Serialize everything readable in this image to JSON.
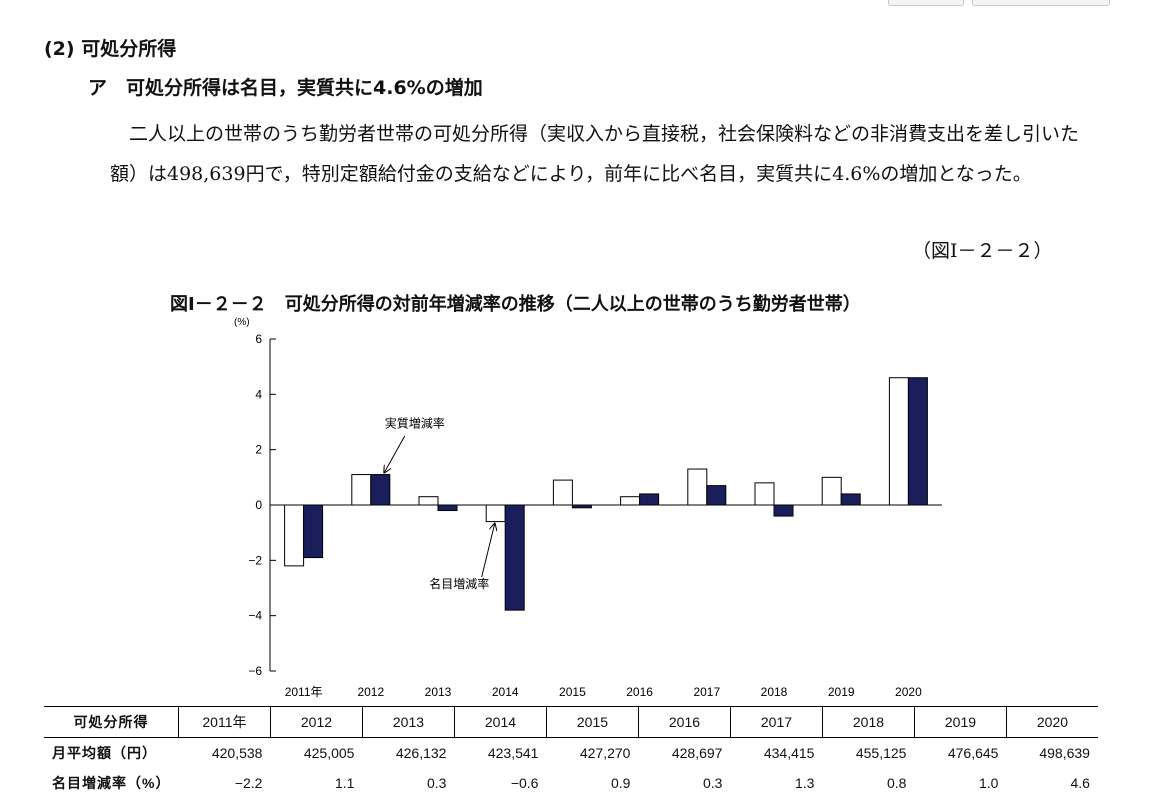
{
  "section_heading": "(2) 可処分所得",
  "subheading": "ア　可処分所得は名目，実質共に4.6%の増加",
  "body_text": "二人以上の世帯のうち勤労者世帯の可処分所得（実収入から直接税，社会保険料などの非消費支出を差し引いた額）は498,639円で，特別定額給付金の支給などにより，前年に比べ名目，実質共に4.6%の増加となった。",
  "figure_reference": "（図Ⅰ－２－２）",
  "figure_title": "図Ⅰ－２－２　可処分所得の対前年増減率の推移（二人以上の世帯のうち勤労者世帯）",
  "chart_data": {
    "type": "bar",
    "title": "図Ⅰ－２－２　可処分所得の対前年増減率の推移（二人以上の世帯のうち勤労者世帯）",
    "ylabel": "(%)",
    "xlabel": "",
    "ylim": [
      -6,
      6
    ],
    "yticks": [
      "−6",
      "−4",
      "−2",
      "0",
      "2",
      "4",
      "6"
    ],
    "ytick_values": [
      -6,
      -4,
      -2,
      0,
      2,
      4,
      6
    ],
    "grid": false,
    "categories": [
      "2011年",
      "2012",
      "2013",
      "2014",
      "2015",
      "2016",
      "2017",
      "2018",
      "2019",
      "2020"
    ],
    "series": [
      {
        "name": "名目増減率",
        "color": "#ffffff",
        "values": [
          -2.2,
          1.1,
          0.3,
          -0.6,
          0.9,
          0.3,
          1.3,
          0.8,
          1.0,
          4.6
        ]
      },
      {
        "name": "実質増減率",
        "color": "#1a1f5c",
        "values": [
          -1.9,
          1.1,
          -0.2,
          -3.8,
          -0.1,
          0.4,
          0.7,
          -0.4,
          0.4,
          4.6
        ]
      }
    ],
    "annotations": [
      {
        "text": "実質増減率",
        "target_series": 1,
        "target_index": 1
      },
      {
        "text": "名目増減率",
        "target_series": 0,
        "target_index": 3
      }
    ]
  },
  "table": {
    "header_label": "可処分所得",
    "years": [
      "2011年",
      "2012",
      "2013",
      "2014",
      "2015",
      "2016",
      "2017",
      "2018",
      "2019",
      "2020"
    ],
    "rows": [
      {
        "label": "月平均額（円）",
        "values": [
          "420,538",
          "425,005",
          "426,132",
          "423,541",
          "427,270",
          "428,697",
          "434,415",
          "455,125",
          "476,645",
          "498,639"
        ]
      },
      {
        "label": "名目増減率（%）",
        "values": [
          "−2.2",
          "1.1",
          "0.3",
          "−0.6",
          "0.9",
          "0.3",
          "1.3",
          "0.8",
          "1.0",
          "4.6"
        ]
      }
    ]
  },
  "colors": {
    "real_bar": "#1a1f5c",
    "nominal_bar": "#ffffff",
    "axis": "#000000"
  }
}
